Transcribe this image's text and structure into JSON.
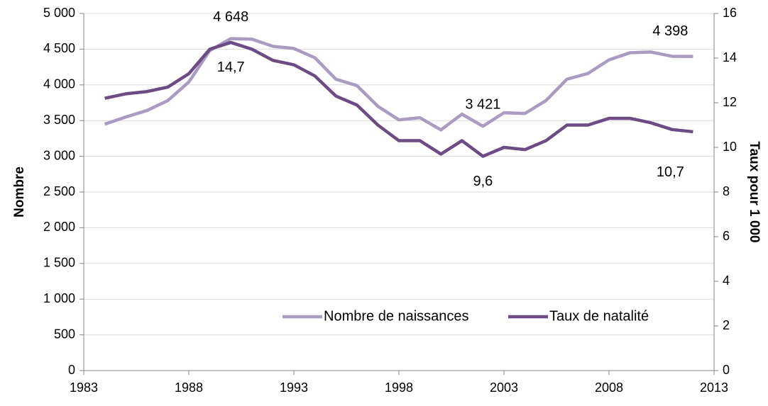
{
  "chart_data": {
    "type": "line",
    "x": [
      1984,
      1985,
      1986,
      1987,
      1988,
      1989,
      1990,
      1991,
      1992,
      1993,
      1994,
      1995,
      1996,
      1997,
      1998,
      1999,
      2000,
      2001,
      2002,
      2003,
      2004,
      2005,
      2006,
      2007,
      2008,
      2009,
      2010,
      2011,
      2012
    ],
    "xlim": [
      1983,
      2013
    ],
    "xticks": [
      1983,
      1988,
      1993,
      1998,
      2003,
      2008,
      2013
    ],
    "ylim": [
      0,
      5000
    ],
    "yticks": [
      0,
      500,
      {
        "value": 1000,
        "label": "1 000"
      },
      {
        "value": 1500,
        "label": "1 500"
      },
      {
        "value": 2000,
        "label": "2 000"
      },
      {
        "value": 2500,
        "label": "2 500"
      },
      {
        "value": 3000,
        "label": "3 000"
      },
      {
        "value": 3500,
        "label": "3 500"
      },
      {
        "value": 4000,
        "label": "4 000"
      },
      {
        "value": 4500,
        "label": "4 500"
      },
      {
        "value": 5000,
        "label": "5 000"
      }
    ],
    "y2lim": [
      0,
      16
    ],
    "y2ticks": [
      0,
      2,
      4,
      6,
      8,
      10,
      12,
      14,
      16
    ],
    "ylabel": "Nombre",
    "y2label": "Taux pour 1 000",
    "grid": true,
    "legend": "lower right",
    "series": [
      {
        "name": "Nombre de naissances",
        "color": "#a99bc2",
        "values": [
          3450,
          3550,
          3640,
          3780,
          4040,
          4480,
          4648,
          4640,
          4540,
          4510,
          4380,
          4080,
          3990,
          3700,
          3510,
          3540,
          3370,
          3590,
          3421,
          3610,
          3600,
          3780,
          4080,
          4160,
          4350,
          4450,
          4460,
          4400,
          4398
        ],
        "value_labels": [
          null,
          null,
          null,
          null,
          null,
          null,
          "4 648",
          null,
          null,
          null,
          null,
          null,
          null,
          null,
          null,
          null,
          null,
          null,
          "3 421",
          null,
          null,
          null,
          null,
          null,
          null,
          null,
          null,
          null,
          "4 398"
        ]
      },
      {
        "name": "Taux de natalité",
        "color": "#6b4c85",
        "axis": "y2",
        "values": [
          12.2,
          12.4,
          12.5,
          12.7,
          13.3,
          14.4,
          14.7,
          14.4,
          13.9,
          13.7,
          13.2,
          12.3,
          11.9,
          11.0,
          10.3,
          10.3,
          9.7,
          10.3,
          9.6,
          10.0,
          9.9,
          10.3,
          11.0,
          11.0,
          11.3,
          11.3,
          11.1,
          10.8,
          10.7
        ],
        "value_labels": [
          null,
          null,
          null,
          null,
          null,
          null,
          "14,7",
          null,
          null,
          null,
          null,
          null,
          null,
          null,
          null,
          null,
          null,
          null,
          "9,6",
          null,
          null,
          null,
          null,
          null,
          null,
          null,
          null,
          null,
          "10,7"
        ]
      }
    ]
  }
}
